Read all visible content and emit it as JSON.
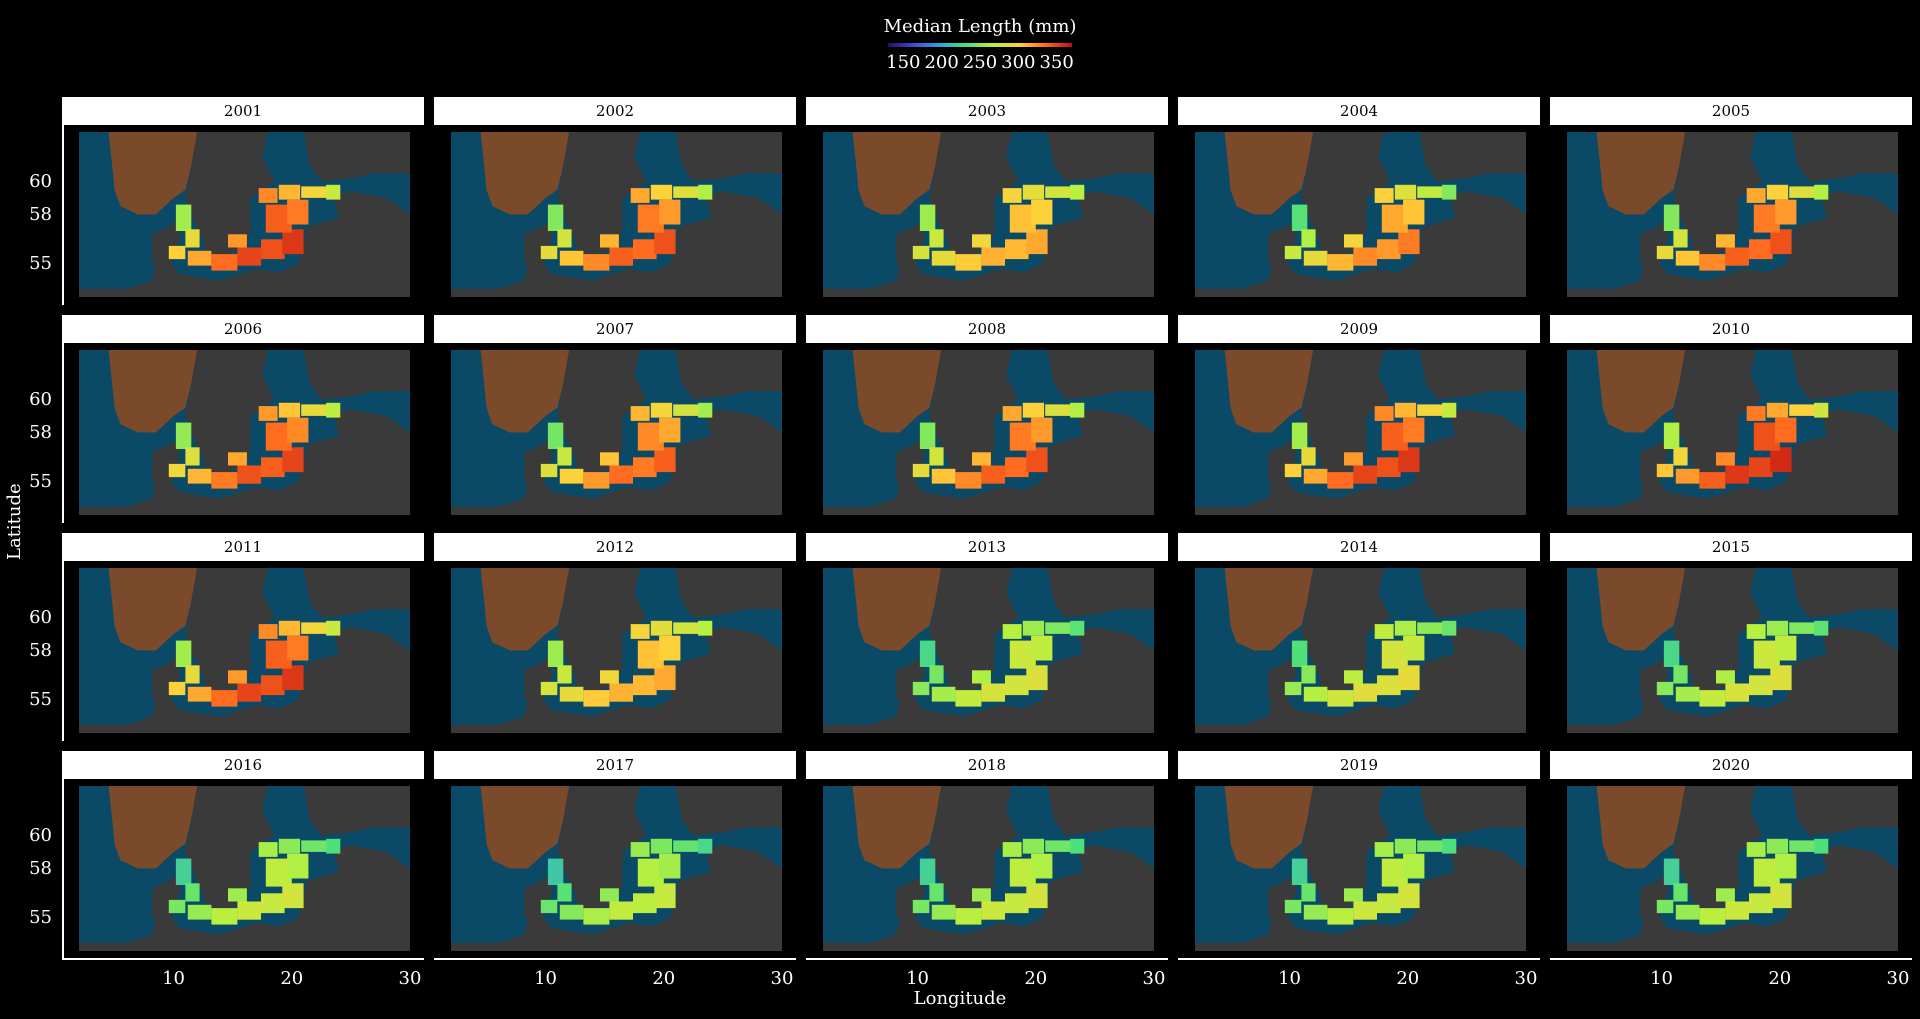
{
  "chart_data": {
    "type": "heatmap",
    "facet_variable": "year",
    "panels": [
      "2001",
      "2002",
      "2003",
      "2004",
      "2005",
      "2006",
      "2007",
      "2008",
      "2009",
      "2010",
      "2011",
      "2012",
      "2013",
      "2014",
      "2015",
      "2016",
      "2017",
      "2018",
      "2019",
      "2020"
    ],
    "xlabel": "Longitude",
    "ylabel": "Latitude",
    "x_ticks": [
      "10",
      "20",
      "30"
    ],
    "y_ticks": [
      "60",
      "58",
      "55"
    ],
    "xlim": [
      2,
      30
    ],
    "ylim": [
      53,
      63
    ],
    "legend": {
      "title": "Median Length (mm)",
      "ticks": [
        "150",
        "200",
        "250",
        "300",
        "350"
      ],
      "range": [
        130,
        370
      ],
      "placement": "top",
      "colormap": [
        "#2a0b6b",
        "#3a4fd0",
        "#2fa6e0",
        "#4fe07a",
        "#b8f040",
        "#ffd03a",
        "#ff6a1e",
        "#c01010"
      ]
    },
    "median_length_central_baltic_mm": [
      330,
      320,
      300,
      305,
      320,
      325,
      315,
      320,
      330,
      335,
      330,
      300,
      270,
      275,
      270,
      265,
      260,
      265,
      265,
      265
    ],
    "background": {
      "sea": "#0b4a66",
      "land": "#3a3a3a",
      "mountains": "#7a4a2a"
    }
  }
}
